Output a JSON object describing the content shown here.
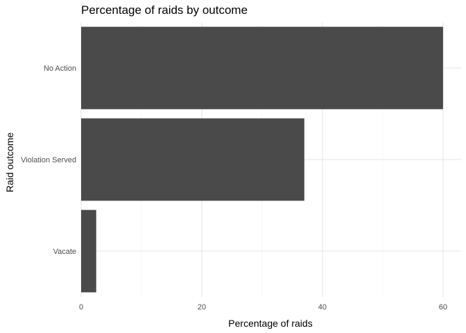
{
  "chart_data": {
    "type": "bar",
    "orientation": "horizontal",
    "title": "Percentage of raids by outcome",
    "xlabel": "Percentage of raids",
    "ylabel": "Raid outcome",
    "categories": [
      "No Action",
      "Violation Served",
      "Vacate"
    ],
    "values": [
      60,
      37,
      2.5
    ],
    "xlim": [
      0,
      63
    ],
    "xticks": [
      0,
      20,
      40,
      60
    ],
    "grid": true,
    "legend": "none",
    "bar_color": "#4a4a4a"
  }
}
